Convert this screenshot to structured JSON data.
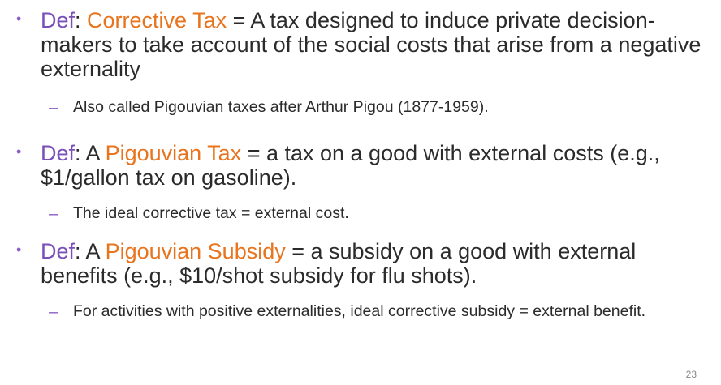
{
  "bullets": [
    {
      "def": "Def",
      "colon": ": ",
      "term": "Corrective Tax",
      "rest": " = A tax designed to induce private decision-makers to take account of the social costs that arise from a negative externality",
      "sub": "Also called Pigouvian taxes after Arthur Pigou (1877-1959)."
    },
    {
      "def": "Def",
      "colon": ": A ",
      "term": "Pigouvian Tax",
      "rest": " = a tax on a good with external costs (e.g., $1/gallon tax on gasoline).",
      "sub": "The ideal corrective tax = external cost."
    },
    {
      "def": "Def",
      "colon": ": A ",
      "term": "Pigouvian Subsidy",
      "rest": " = a subsidy on a good with external benefits (e.g., $10/shot subsidy for flu shots).",
      "sub": "For activities with positive externalities, ideal corrective subsidy = external benefit."
    }
  ],
  "bullet_symbol": "•",
  "dash_symbol": "–",
  "page_number": "23",
  "colors": {
    "def": "#7B4FB8",
    "term": "#E8741E",
    "bullet": "#8A5CC7",
    "text": "#2b2b2b"
  }
}
